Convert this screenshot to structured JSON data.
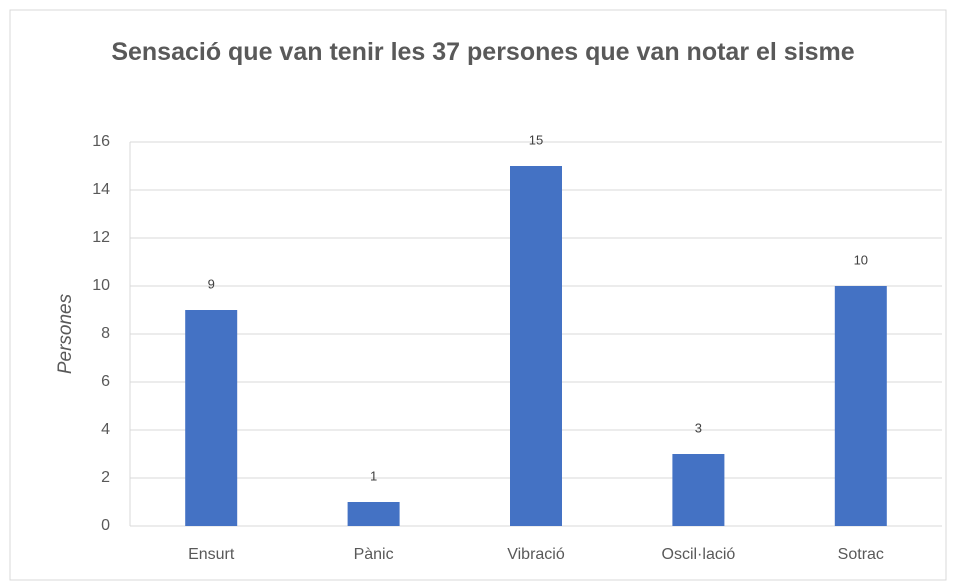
{
  "chart_data": {
    "type": "bar",
    "title": "Sensació que van tenir les 37 persones que van notar el sisme",
    "y_label": "Persones",
    "categories": [
      "Ensurt",
      "Pànic",
      "Vibració",
      "Oscil·lació",
      "Sotrac"
    ],
    "values": [
      9,
      1,
      15,
      3,
      10
    ],
    "color": "#4472c4",
    "ylim": [
      0,
      16
    ],
    "yticks": [
      0,
      2,
      4,
      6,
      8,
      10,
      12,
      14,
      16
    ],
    "grid": true
  }
}
